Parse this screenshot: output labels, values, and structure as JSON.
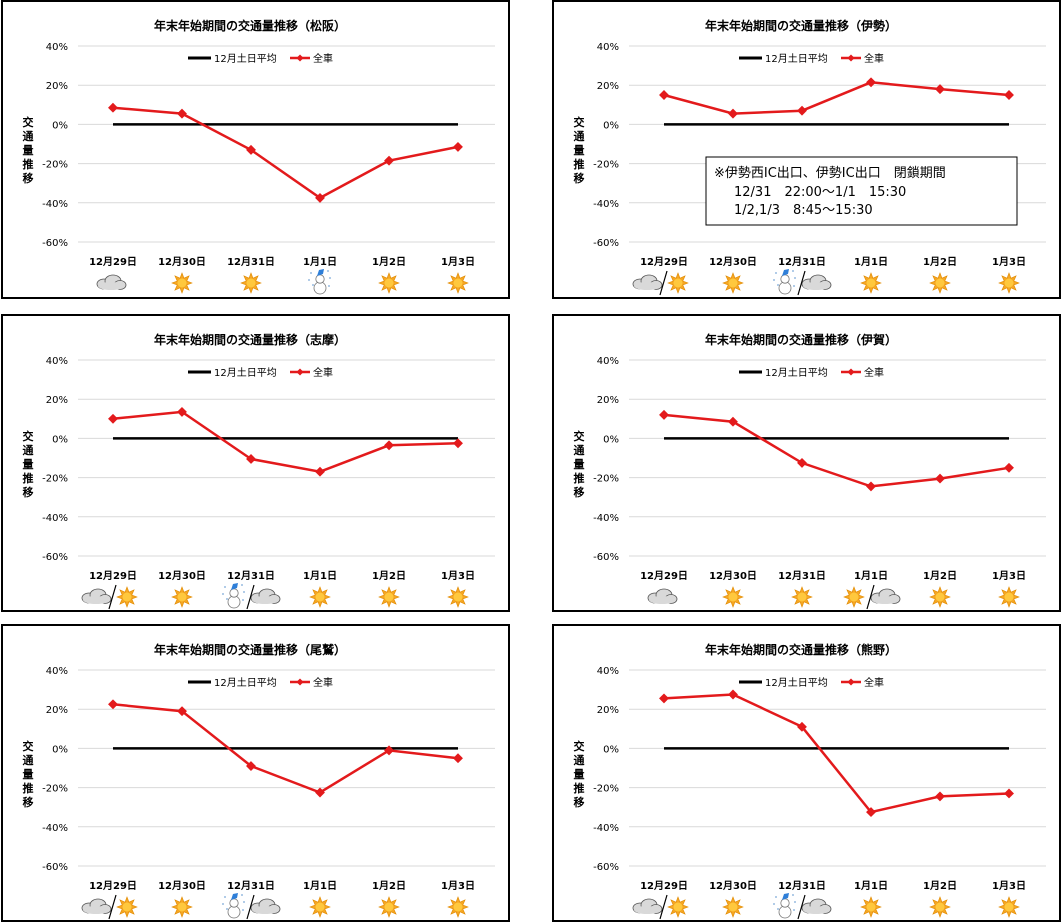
{
  "legend": {
    "avg": "12月土日平均",
    "all": "全車"
  },
  "ylabel": "交通量推移",
  "yticks": [
    "40%",
    "20%",
    "0%",
    "-20%",
    "-40%",
    "-60%"
  ],
  "colors": {
    "avg": "#000000",
    "all": "#e31a1c",
    "grid": "#d9d9d9",
    "sun": "#f5a623",
    "cloud": "#d9d9d9"
  },
  "chart_data": [
    {
      "type": "line",
      "title": "年末年始期間の交通量推移（松阪）",
      "categories": [
        "12月29日",
        "12月30日",
        "12月31日",
        "1月1日",
        "1月2日",
        "1月3日"
      ],
      "ylim": [
        -60,
        40
      ],
      "series": [
        {
          "name": "12月土日平均",
          "values": [
            0,
            0,
            0,
            0,
            0,
            0
          ]
        },
        {
          "name": "全車",
          "values": [
            8.5,
            5.5,
            -13,
            -37.5,
            -18.5,
            -11.5
          ]
        }
      ],
      "weather": [
        [
          "cloud"
        ],
        [
          "sun"
        ],
        [
          "sun"
        ],
        [
          "snow"
        ],
        [
          "sun"
        ],
        [
          "sun"
        ]
      ]
    },
    {
      "type": "line",
      "title": "年末年始期間の交通量推移（伊勢）",
      "categories": [
        "12月29日",
        "12月30日",
        "12月31日",
        "1月1日",
        "1月2日",
        "1月3日"
      ],
      "ylim": [
        -60,
        40
      ],
      "series": [
        {
          "name": "12月土日平均",
          "values": [
            0,
            0,
            0,
            0,
            0,
            0
          ]
        },
        {
          "name": "全車",
          "values": [
            15,
            5.5,
            7,
            21.5,
            18,
            15
          ]
        }
      ],
      "weather": [
        [
          "cloud",
          "sun"
        ],
        [
          "sun"
        ],
        [
          "snow",
          "cloud"
        ],
        [
          "sun"
        ],
        [
          "sun"
        ],
        [
          "sun"
        ]
      ],
      "note": [
        "※伊勢西IC出口、伊勢IC出口　閉鎖期間",
        "12/31　22:00～1/1　15:30",
        "1/2,1/3　8:45～15:30"
      ]
    },
    {
      "type": "line",
      "title": "年末年始期間の交通量推移（志摩）",
      "categories": [
        "12月29日",
        "12月30日",
        "12月31日",
        "1月1日",
        "1月2日",
        "1月3日"
      ],
      "ylim": [
        -60,
        40
      ],
      "series": [
        {
          "name": "12月土日平均",
          "values": [
            0,
            0,
            0,
            0,
            0,
            0
          ]
        },
        {
          "name": "全車",
          "values": [
            10,
            13.5,
            -10.5,
            -17,
            -3.5,
            -2.5
          ]
        }
      ],
      "weather": [
        [
          "cloud",
          "sun"
        ],
        [
          "sun"
        ],
        [
          "snow",
          "cloud"
        ],
        [
          "sun"
        ],
        [
          "sun"
        ],
        [
          "sun"
        ]
      ]
    },
    {
      "type": "line",
      "title": "年末年始期間の交通量推移（伊賀）",
      "categories": [
        "12月29日",
        "12月30日",
        "12月31日",
        "1月1日",
        "1月2日",
        "1月3日"
      ],
      "ylim": [
        -60,
        40
      ],
      "series": [
        {
          "name": "12月土日平均",
          "values": [
            0,
            0,
            0,
            0,
            0,
            0
          ]
        },
        {
          "name": "全車",
          "values": [
            12,
            8.5,
            -12.5,
            -24.5,
            -20.5,
            -15
          ]
        }
      ],
      "weather": [
        [
          "cloud"
        ],
        [
          "sun"
        ],
        [
          "sun"
        ],
        [
          "sun",
          "cloud"
        ],
        [
          "sun"
        ],
        [
          "sun"
        ]
      ]
    },
    {
      "type": "line",
      "title": "年末年始期間の交通量推移（尾鷲）",
      "categories": [
        "12月29日",
        "12月30日",
        "12月31日",
        "1月1日",
        "1月2日",
        "1月3日"
      ],
      "ylim": [
        -60,
        40
      ],
      "series": [
        {
          "name": "12月土日平均",
          "values": [
            0,
            0,
            0,
            0,
            0,
            0
          ]
        },
        {
          "name": "全車",
          "values": [
            22.5,
            19,
            -9,
            -22.5,
            -1,
            -5
          ]
        }
      ],
      "weather": [
        [
          "cloud",
          "sun"
        ],
        [
          "sun"
        ],
        [
          "snow",
          "cloud"
        ],
        [
          "sun"
        ],
        [
          "sun"
        ],
        [
          "sun"
        ]
      ]
    },
    {
      "type": "line",
      "title": "年末年始期間の交通量推移（熊野）",
      "categories": [
        "12月29日",
        "12月30日",
        "12月31日",
        "1月1日",
        "1月2日",
        "1月3日"
      ],
      "ylim": [
        -60,
        40
      ],
      "series": [
        {
          "name": "12月土日平均",
          "values": [
            0,
            0,
            0,
            0,
            0,
            0
          ]
        },
        {
          "name": "全車",
          "values": [
            25.5,
            27.5,
            11,
            -32.5,
            -24.5,
            -23
          ]
        }
      ],
      "weather": [
        [
          "cloud",
          "sun"
        ],
        [
          "sun"
        ],
        [
          "snow",
          "cloud"
        ],
        [
          "sun"
        ],
        [
          "sun"
        ],
        [
          "sun"
        ]
      ]
    }
  ]
}
